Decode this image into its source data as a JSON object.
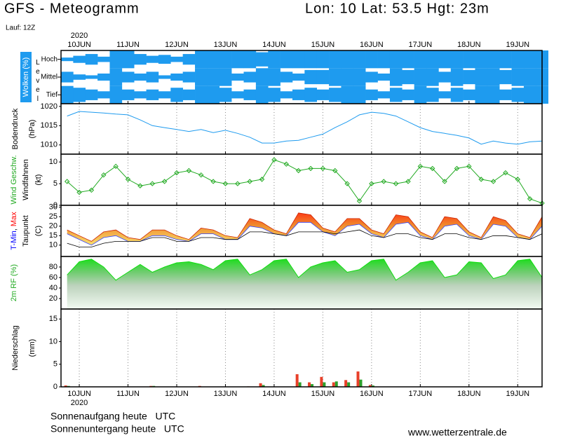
{
  "header": {
    "title": "GFS - Meteogramm",
    "location": "Lon: 10 Lat: 53.5 Hgt: 23m",
    "run": "Lauf: 12Z"
  },
  "year": "2020",
  "footer": {
    "sunrise": "Sonnenaufgang heute   UTC",
    "sunset": "Sonnenuntergang heute   UTC",
    "source": "www.wetterzentrale.de"
  },
  "chart_data": [
    {
      "type": "cloud",
      "ylabel": [
        [
          {
            "text": "Wolken (%)",
            "color": "#ffffff"
          }
        ]
      ],
      "level_label": "Level",
      "x": [
        -0.25,
        0,
        0.25,
        0.5,
        0.75,
        1,
        1.25,
        1.5,
        1.75,
        2,
        2.25,
        2.5,
        2.75,
        3,
        3.25,
        3.5,
        3.75,
        4,
        4.25,
        4.5,
        4.75,
        5,
        5.25,
        5.5,
        5.75,
        6,
        6.25,
        6.5,
        6.75,
        7,
        7.25,
        7.5,
        7.75,
        8,
        8.25,
        8.5,
        8.75,
        9,
        9.25,
        9.5
      ],
      "xlim": [
        -0.375,
        9.5
      ],
      "xticks": [
        {
          "value": 0,
          "label": "10JUN"
        },
        {
          "value": 1,
          "label": "11JUN"
        },
        {
          "value": 2,
          "label": "12JUN"
        },
        {
          "value": 3,
          "label": "13JUN"
        },
        {
          "value": 4,
          "label": "14JUN"
        },
        {
          "value": 5,
          "label": "15JUN"
        },
        {
          "value": 6,
          "label": "16JUN"
        },
        {
          "value": 7,
          "label": "17JUN"
        },
        {
          "value": 8,
          "label": "18JUN"
        },
        {
          "value": 9,
          "label": "19JUN"
        }
      ],
      "ylim": [
        0,
        100
      ],
      "grid": false,
      "series": [
        {
          "name": "Hoch",
          "color": "#1e9bef",
          "values": [
            20,
            40,
            60,
            30,
            100,
            100,
            60,
            40,
            50,
            30,
            60,
            100,
            100,
            100,
            100,
            100,
            80,
            100,
            100,
            100,
            100,
            100,
            100,
            100,
            100,
            100,
            100,
            100,
            100,
            100,
            100,
            100,
            100,
            100,
            100,
            100,
            100,
            100,
            100,
            100
          ]
        },
        {
          "name": "Mittel",
          "color": "#1e9bef",
          "values": [
            60,
            30,
            20,
            40,
            100,
            60,
            40,
            60,
            20,
            40,
            60,
            100,
            100,
            100,
            40,
            60,
            100,
            100,
            60,
            40,
            80,
            80,
            100,
            100,
            100,
            60,
            40,
            100,
            80,
            100,
            100,
            60,
            100,
            80,
            100,
            100,
            80,
            100,
            100,
            100
          ]
        },
        {
          "name": "Tief",
          "color": "#1e9bef",
          "values": [
            100,
            80,
            60,
            40,
            100,
            60,
            40,
            60,
            40,
            80,
            60,
            100,
            100,
            80,
            40,
            60,
            100,
            80,
            40,
            60,
            80,
            60,
            80,
            100,
            100,
            60,
            40,
            80,
            60,
            100,
            80,
            40,
            80,
            60,
            100,
            100,
            60,
            80,
            100,
            100
          ]
        }
      ]
    },
    {
      "type": "line",
      "ylabel": [
        [
          {
            "text": "Bodendruck"
          }
        ],
        [
          {
            "text": "(hPa)"
          }
        ]
      ],
      "x": [
        -0.25,
        0,
        0.25,
        0.5,
        0.75,
        1,
        1.25,
        1.5,
        1.75,
        2,
        2.25,
        2.5,
        2.75,
        3,
        3.25,
        3.5,
        3.75,
        4,
        4.25,
        4.5,
        4.75,
        5,
        5.25,
        5.5,
        5.75,
        6,
        6.25,
        6.5,
        6.75,
        7,
        7.25,
        7.5,
        7.75,
        8,
        8.25,
        8.5,
        8.75,
        9,
        9.25,
        9.5
      ],
      "xlim": [
        -0.375,
        9.5
      ],
      "xticks": [
        {
          "value": 0,
          "label": "10JUN"
        },
        {
          "value": 1,
          "label": "11JUN"
        },
        {
          "value": 2,
          "label": "12JUN"
        },
        {
          "value": 3,
          "label": "13JUN"
        },
        {
          "value": 4,
          "label": "14JUN"
        },
        {
          "value": 5,
          "label": "15JUN"
        },
        {
          "value": 6,
          "label": "16JUN"
        },
        {
          "value": 7,
          "label": "17JUN"
        },
        {
          "value": 8,
          "label": "18JUN"
        },
        {
          "value": 9,
          "label": "19JUN"
        }
      ],
      "ylim": [
        1007.6,
        1020.7
      ],
      "yticks": [
        1010,
        1015,
        1020
      ],
      "grid": true,
      "series": [
        {
          "color": "#1e9bef",
          "values": [
            1017.5,
            1018.7,
            1018.5,
            1018.3,
            1018,
            1017.8,
            1016.5,
            1015,
            1014.5,
            1014,
            1013.5,
            1014,
            1013.2,
            1013.8,
            1013,
            1012,
            1010.5,
            1010.5,
            1011,
            1011.2,
            1012,
            1012.8,
            1014.5,
            1016,
            1017.8,
            1018.5,
            1018.2,
            1017.5,
            1016,
            1014.5,
            1013.5,
            1013,
            1012.5,
            1011.8,
            1010.2,
            1011,
            1010.5,
            1010.2,
            1010.8,
            1011
          ]
        }
      ]
    },
    {
      "type": "line",
      "ylabel": [
        [
          {
            "text": "Wind Geschw.",
            "color": "#22aa22"
          }
        ],
        [
          {
            "text": "Windfahnen"
          }
        ],
        [
          {
            "text": "(kt)"
          }
        ]
      ],
      "markers": true,
      "x": [
        -0.25,
        0,
        0.25,
        0.5,
        0.75,
        1,
        1.25,
        1.5,
        1.75,
        2,
        2.25,
        2.5,
        2.75,
        3,
        3.25,
        3.5,
        3.75,
        4,
        4.25,
        4.5,
        4.75,
        5,
        5.25,
        5.5,
        5.75,
        6,
        6.25,
        6.5,
        6.75,
        7,
        7.25,
        7.5,
        7.75,
        8,
        8.25,
        8.5,
        8.75,
        9,
        9.25,
        9.5
      ],
      "xlim": [
        -0.375,
        9.5
      ],
      "xticks": [
        {
          "value": 0,
          "label": "10JUN"
        },
        {
          "value": 1,
          "label": "11JUN"
        },
        {
          "value": 2,
          "label": "12JUN"
        },
        {
          "value": 3,
          "label": "13JUN"
        },
        {
          "value": 4,
          "label": "14JUN"
        },
        {
          "value": 5,
          "label": "15JUN"
        },
        {
          "value": 6,
          "label": "16JUN"
        },
        {
          "value": 7,
          "label": "17JUN"
        },
        {
          "value": 8,
          "label": "18JUN"
        },
        {
          "value": 9,
          "label": "19JUN"
        }
      ],
      "ylim": [
        0,
        11.8
      ],
      "yticks": [
        0,
        5,
        10
      ],
      "grid": true,
      "series": [
        {
          "color": "#22aa22",
          "values": [
            5.5,
            3,
            3.5,
            7,
            9,
            6,
            4.5,
            5,
            5.5,
            7.5,
            8,
            7,
            5.5,
            5,
            5,
            5.5,
            6,
            10.5,
            9.5,
            8,
            8.5,
            8.5,
            8,
            5,
            1,
            5,
            5.5,
            5,
            5.5,
            9,
            8.5,
            5.5,
            8.5,
            9,
            6,
            5.5,
            7.5,
            6,
            1.5,
            0.5
          ]
        }
      ]
    },
    {
      "type": "range",
      "ylabel": [
        [
          {
            "text": "T-Min",
            "color": "#0000ff"
          },
          {
            "text": ", "
          },
          {
            "text": "Max",
            "color": "#ff0000"
          }
        ],
        [
          {
            "text": "Taupunkt"
          }
        ],
        [
          {
            "text": "(C)"
          }
        ]
      ],
      "x": [
        -0.25,
        0,
        0.25,
        0.5,
        0.75,
        1,
        1.25,
        1.5,
        1.75,
        2,
        2.25,
        2.5,
        2.75,
        3,
        3.25,
        3.5,
        3.75,
        4,
        4.25,
        4.5,
        4.75,
        5,
        5.25,
        5.5,
        5.75,
        6,
        6.25,
        6.5,
        6.75,
        7,
        7.25,
        7.5,
        7.75,
        8,
        8.25,
        8.5,
        8.75,
        9,
        9.25,
        9.5
      ],
      "xlim": [
        -0.375,
        9.5
      ],
      "xticks": [
        {
          "value": 0,
          "label": "10JUN"
        },
        {
          "value": 1,
          "label": "11JUN"
        },
        {
          "value": 2,
          "label": "12JUN"
        },
        {
          "value": 3,
          "label": "13JUN"
        },
        {
          "value": 4,
          "label": "14JUN"
        },
        {
          "value": 5,
          "label": "15JUN"
        },
        {
          "value": 6,
          "label": "16JUN"
        },
        {
          "value": 7,
          "label": "17JUN"
        },
        {
          "value": 8,
          "label": "18JUN"
        },
        {
          "value": 9,
          "label": "19JUN"
        }
      ],
      "ylim": [
        4,
        31
      ],
      "yticks": [
        10,
        15,
        20,
        25,
        30
      ],
      "grid": true,
      "series": [
        {
          "color": "#cc2200",
          "values": [
            18,
            15,
            12,
            17,
            18,
            14,
            13,
            18,
            18,
            15,
            13,
            19,
            18,
            15,
            14,
            24,
            22,
            18,
            16,
            27,
            26,
            19,
            17,
            24,
            24,
            18,
            16,
            26,
            25,
            17,
            14,
            25,
            24,
            17,
            14,
            25,
            23,
            16,
            14,
            25
          ]
        },
        {
          "color": "#3344ff",
          "values": [
            16,
            13,
            10,
            14,
            15,
            12,
            12,
            15,
            15,
            13,
            12,
            16,
            16,
            13,
            13,
            20,
            19,
            16,
            15,
            22,
            22,
            17,
            15,
            20,
            21,
            16,
            14,
            21,
            22,
            15,
            13,
            20,
            21,
            15,
            13,
            21,
            20,
            14,
            13,
            20
          ]
        },
        {
          "color": "#000000",
          "values": [
            11,
            9,
            9,
            11,
            12,
            12,
            12,
            14,
            14,
            12,
            12,
            14,
            14,
            13,
            13,
            17,
            17,
            16,
            15,
            17,
            17,
            17,
            16,
            17,
            18,
            15,
            14,
            16,
            16,
            14,
            13,
            16,
            16,
            14,
            13,
            15,
            15,
            14,
            13,
            16
          ]
        }
      ]
    },
    {
      "type": "area",
      "ylabel": [
        [
          {
            "text": "2m RF (%)",
            "color": "#22aa22"
          }
        ]
      ],
      "x": [
        -0.25,
        0,
        0.25,
        0.5,
        0.75,
        1,
        1.25,
        1.5,
        1.75,
        2,
        2.25,
        2.5,
        2.75,
        3,
        3.25,
        3.5,
        3.75,
        4,
        4.25,
        4.5,
        4.75,
        5,
        5.25,
        5.5,
        5.75,
        6,
        6.25,
        6.5,
        6.75,
        7,
        7.25,
        7.5,
        7.75,
        8,
        8.25,
        8.5,
        8.75,
        9,
        9.25,
        9.5
      ],
      "xlim": [
        -0.375,
        9.5
      ],
      "xticks": [
        {
          "value": 0,
          "label": "10JUN"
        },
        {
          "value": 1,
          "label": "11JUN"
        },
        {
          "value": 2,
          "label": "12JUN"
        },
        {
          "value": 3,
          "label": "13JUN"
        },
        {
          "value": 4,
          "label": "14JUN"
        },
        {
          "value": 5,
          "label": "15JUN"
        },
        {
          "value": 6,
          "label": "16JUN"
        },
        {
          "value": 7,
          "label": "17JUN"
        },
        {
          "value": 8,
          "label": "18JUN"
        },
        {
          "value": 9,
          "label": "19JUN"
        }
      ],
      "ylim": [
        0,
        100
      ],
      "yticks": [
        20,
        40,
        60,
        80
      ],
      "grid": false,
      "series": [
        {
          "color": "#10dd10",
          "values": [
            65,
            90,
            95,
            80,
            55,
            70,
            85,
            70,
            80,
            88,
            90,
            85,
            75,
            92,
            95,
            65,
            75,
            92,
            95,
            60,
            80,
            88,
            92,
            70,
            75,
            92,
            95,
            55,
            70,
            88,
            92,
            60,
            65,
            90,
            88,
            58,
            65,
            92,
            95,
            60
          ]
        }
      ]
    },
    {
      "type": "bar",
      "ylabel": [
        [
          {
            "text": "Niederschlag"
          }
        ],
        [
          {
            "text": "(mm)"
          }
        ]
      ],
      "x": [
        -0.25,
        0,
        0.25,
        0.5,
        0.75,
        1,
        1.25,
        1.5,
        1.75,
        2,
        2.25,
        2.5,
        2.75,
        3,
        3.25,
        3.5,
        3.75,
        4,
        4.25,
        4.5,
        4.75,
        5,
        5.25,
        5.5,
        5.75,
        6,
        6.25,
        6.5,
        6.75,
        7,
        7.25,
        7.5,
        7.75,
        8,
        8.25,
        8.5,
        8.75,
        9,
        9.25,
        9.5
      ],
      "xlim": [
        -0.375,
        9.5
      ],
      "xticks": [
        {
          "value": 0,
          "label": "10JUN"
        },
        {
          "value": 1,
          "label": "11JUN"
        },
        {
          "value": 2,
          "label": "12JUN"
        },
        {
          "value": 3,
          "label": "13JUN"
        },
        {
          "value": 4,
          "label": "14JUN"
        },
        {
          "value": 5,
          "label": "15JUN"
        },
        {
          "value": 6,
          "label": "16JUN"
        },
        {
          "value": 7,
          "label": "17JUN"
        },
        {
          "value": 8,
          "label": "18JUN"
        },
        {
          "value": 9,
          "label": "19JUN"
        }
      ],
      "ylim": [
        0,
        17.2
      ],
      "yticks": [
        0,
        5,
        10,
        15
      ],
      "grid": true,
      "series": [
        {
          "color": "#e8402a",
          "values": [
            0.3,
            0,
            0,
            0,
            0,
            0,
            0,
            0.2,
            0,
            0,
            0,
            0.2,
            0,
            0,
            0,
            0.1,
            0.8,
            0,
            0,
            2.8,
            1,
            2.2,
            1,
            1.5,
            3.4,
            0.4,
            0,
            0,
            0,
            0,
            0,
            0,
            0,
            0,
            0,
            0,
            0,
            0,
            0,
            0
          ]
        },
        {
          "color": "#2ca02c",
          "values": [
            0.2,
            0,
            0,
            0,
            0,
            0,
            0,
            0.2,
            0,
            0,
            0,
            0,
            0,
            0,
            0,
            0,
            0.4,
            0,
            0,
            1,
            0.6,
            1,
            1.2,
            1,
            1.6,
            0.3,
            0,
            0,
            0,
            0,
            0,
            0,
            0,
            0,
            0,
            0,
            0,
            0,
            0,
            0
          ]
        }
      ]
    }
  ]
}
